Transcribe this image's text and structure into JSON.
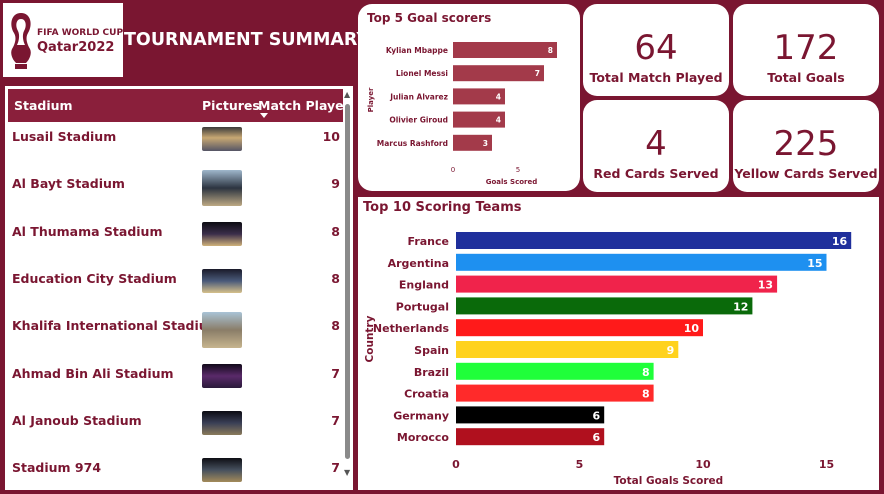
{
  "header": {
    "logo_line1": "FIFA WORLD CUP",
    "logo_line2": "Qatar2022",
    "title": "TOURNAMENT SUMMARY"
  },
  "stadium_table": {
    "columns": [
      "Stadium",
      "Pictures",
      "Match Played"
    ],
    "sorted_column": "Match Played",
    "rows": [
      {
        "stadium": "Lusail Stadium",
        "matches": "10"
      },
      {
        "stadium": "Al Bayt Stadium",
        "matches": "9"
      },
      {
        "stadium": "Al Thumama Stadium",
        "matches": "8"
      },
      {
        "stadium": "Education City Stadium",
        "matches": "8"
      },
      {
        "stadium": "Khalifa International Stadium",
        "matches": "8"
      },
      {
        "stadium": "Ahmad Bin Ali Stadium",
        "matches": "7"
      },
      {
        "stadium": "Al Janoub Stadium",
        "matches": "7"
      },
      {
        "stadium": "Stadium 974",
        "matches": "7"
      }
    ]
  },
  "kpis": [
    {
      "value": "64",
      "label": "Total Match Played"
    },
    {
      "value": "172",
      "label": "Total Goals"
    },
    {
      "value": "4",
      "label": "Red Cards Served"
    },
    {
      "value": "225",
      "label": "Yellow Cards Served"
    }
  ],
  "colors": {
    "background": "#7a1631",
    "accent": "#8a1f3b",
    "scorer_bar": "#a33a4a"
  },
  "chart_data": [
    {
      "type": "bar",
      "orientation": "horizontal",
      "title": "Top 5 Goal scorers",
      "categories": [
        "Kylian Mbappe",
        "Lionel Messi",
        "Julian Alvarez",
        "Olivier Giroud",
        "Marcus Rashford"
      ],
      "values": [
        8,
        7,
        4,
        4,
        3
      ],
      "xlabel": "Goals Scored",
      "ylabel": "Player",
      "xticks": [
        0,
        5
      ],
      "xlim": [
        0,
        9
      ],
      "data_labels": true,
      "grid": false
    },
    {
      "type": "bar",
      "orientation": "horizontal",
      "title": "Top 10 Scoring Teams",
      "categories": [
        "France",
        "Argentina",
        "England",
        "Portugal",
        "Netherlands",
        "Spain",
        "Brazil",
        "Croatia",
        "Germany",
        "Morocco"
      ],
      "values": [
        16,
        15,
        13,
        12,
        10,
        9,
        8,
        8,
        6,
        6
      ],
      "colors": [
        "#1f2f9c",
        "#1e90f0",
        "#f0234b",
        "#0a6a0a",
        "#ff1a1a",
        "#ffd21e",
        "#1fff3a",
        "#ff2a2a",
        "#000000",
        "#b0101e"
      ],
      "xlabel": "Total Goals Scored",
      "ylabel": "Country",
      "xticks": [
        0,
        5,
        10,
        15
      ],
      "xlim": [
        0,
        16
      ],
      "data_labels": true,
      "grid": false
    }
  ]
}
